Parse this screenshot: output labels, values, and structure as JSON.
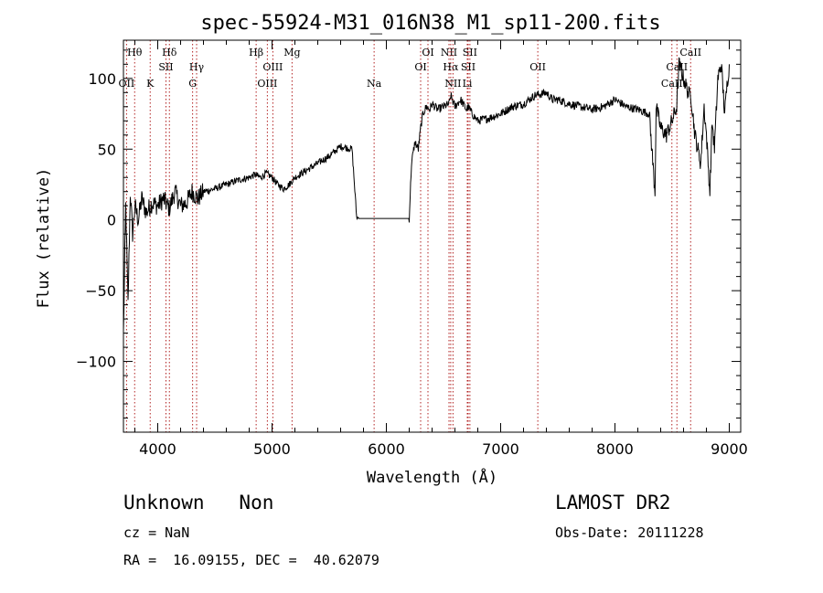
{
  "chart_data": {
    "type": "line",
    "title": "spec-55924-M31_016N38_M1_sp11-200.fits",
    "xlabel": "Wavelength (Å)",
    "ylabel": "Flux (relative)",
    "xlim": [
      3700,
      9100
    ],
    "ylim": [
      -150,
      127
    ],
    "xticks": [
      4000,
      5000,
      6000,
      7000,
      8000,
      9000
    ],
    "yticks": [
      -100,
      -50,
      0,
      50,
      100
    ],
    "xtick_labels": [
      "4000",
      "5000",
      "6000",
      "7000",
      "8000",
      "9000"
    ],
    "ytick_labels": [
      "−100",
      "−50",
      "0",
      "50",
      "100"
    ],
    "series": [
      {
        "name": "flux",
        "x": [
          3700,
          3720,
          3740,
          3760,
          3780,
          3800,
          3830,
          3860,
          3900,
          3950,
          4000,
          4050,
          4100,
          4150,
          4200,
          4250,
          4300,
          4350,
          4400,
          4500,
          4600,
          4700,
          4800,
          4850,
          4900,
          4950,
          5000,
          5050,
          5100,
          5150,
          5200,
          5300,
          5400,
          5500,
          5600,
          5700,
          5740,
          5760,
          5800,
          6000,
          6200,
          6220,
          6250,
          6280,
          6300,
          6320,
          6350,
          6380,
          6400,
          6450,
          6500,
          6550,
          6563,
          6600,
          6650,
          6700,
          6716,
          6750,
          6800,
          6900,
          7000,
          7100,
          7200,
          7300,
          7400,
          7450,
          7500,
          7600,
          7700,
          7800,
          7900,
          8000,
          8100,
          8200,
          8300,
          8350,
          8360,
          8400,
          8450,
          8500,
          8540,
          8560,
          8600,
          8620,
          8650,
          8662,
          8700,
          8750,
          8780,
          8800,
          8830,
          8850,
          8870,
          8900,
          8930,
          8960,
          8980,
          9000
        ],
        "y": [
          -80,
          10,
          -60,
          20,
          -10,
          10,
          0,
          15,
          5,
          12,
          10,
          15,
          8,
          20,
          10,
          12,
          20,
          15,
          20,
          22,
          25,
          28,
          30,
          32,
          30,
          33,
          30,
          25,
          22,
          25,
          30,
          35,
          40,
          45,
          52,
          50,
          2,
          1,
          1,
          1,
          1,
          40,
          55,
          50,
          65,
          75,
          80,
          78,
          82,
          78,
          80,
          82,
          88,
          80,
          85,
          78,
          80,
          75,
          70,
          72,
          75,
          80,
          82,
          88,
          90,
          85,
          85,
          82,
          80,
          78,
          80,
          85,
          80,
          78,
          75,
          20,
          80,
          65,
          60,
          70,
          80,
          110,
          100,
          95,
          88,
          90,
          60,
          40,
          80,
          60,
          20,
          70,
          50,
          100,
          110,
          75,
          95,
          110
        ]
      }
    ],
    "spectral_lines": [
      {
        "label": "Hθ",
        "wavelength": 3798,
        "row": 0
      },
      {
        "label": "OII",
        "wavelength": 3727,
        "row": 2
      },
      {
        "label": "K",
        "wavelength": 3934,
        "row": 2
      },
      {
        "label": "Hδ",
        "wavelength": 4102,
        "row": 0
      },
      {
        "label": "SII",
        "wavelength": 4072,
        "row": 1
      },
      {
        "label": "Hγ",
        "wavelength": 4340,
        "row": 1
      },
      {
        "label": "G",
        "wavelength": 4305,
        "row": 2
      },
      {
        "label": "Hβ",
        "wavelength": 4861,
        "row": 0
      },
      {
        "label": "OIII",
        "wavelength": 4959,
        "row": 2
      },
      {
        "label": "OIII",
        "wavelength": 5007,
        "row": 1
      },
      {
        "label": "Mg",
        "wavelength": 5175,
        "row": 0
      },
      {
        "label": "Na",
        "wavelength": 5893,
        "row": 2
      },
      {
        "label": "OI",
        "wavelength": 6364,
        "row": 0
      },
      {
        "label": "OI",
        "wavelength": 6300,
        "row": 1
      },
      {
        "label": "NII",
        "wavelength": 6548,
        "row": 0
      },
      {
        "label": "SII",
        "wavelength": 6731,
        "row": 0
      },
      {
        "label": "Hα",
        "wavelength": 6563,
        "row": 1
      },
      {
        "label": "SII",
        "wavelength": 6716,
        "row": 1
      },
      {
        "label": "NII",
        "wavelength": 6583,
        "row": 2
      },
      {
        "label": "Li",
        "wavelength": 6708,
        "row": 2
      },
      {
        "label": "OII",
        "wavelength": 7325,
        "row": 1
      },
      {
        "label": "CaII",
        "wavelength": 8662,
        "row": 0
      },
      {
        "label": "CaII",
        "wavelength": 8542,
        "row": 1
      },
      {
        "label": "CaII",
        "wavelength": 8498,
        "row": 2
      }
    ]
  },
  "info": {
    "class_text": "Unknown   Non",
    "survey": "LAMOST DR2",
    "cz": "cz = NaN",
    "obs_date": "Obs-Date: 20111228",
    "coords": "RA =  16.09155, DEC =  40.62079"
  }
}
